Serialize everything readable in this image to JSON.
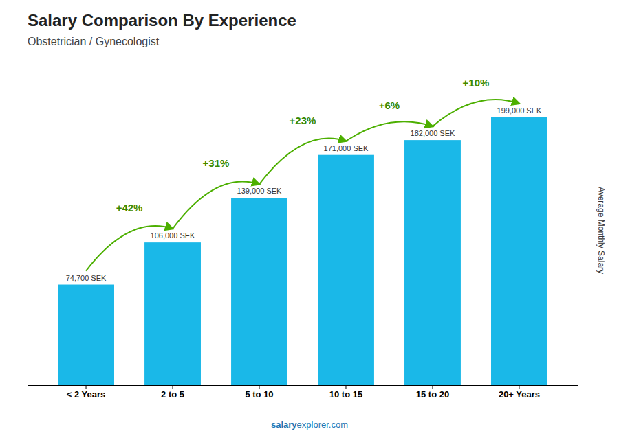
{
  "chart_data": {
    "type": "bar",
    "title": "Salary Comparison By Experience",
    "subtitle": "Obstetrician / Gynecologist",
    "ylabel": "Average Monthly Salary",
    "categories": [
      "< 2 Years",
      "2 to 5",
      "5 to 10",
      "10 to 15",
      "15 to 20",
      "20+ Years"
    ],
    "values": [
      74700,
      106000,
      139000,
      171000,
      182000,
      199000
    ],
    "value_labels": [
      "74,700 SEK",
      "106,000 SEK",
      "139,000 SEK",
      "171,000 SEK",
      "182,000 SEK",
      "199,000 SEK"
    ],
    "annotations": [
      "+42%",
      "+31%",
      "+23%",
      "+6%",
      "+10%"
    ],
    "watermark": [
      "salary",
      "explorer.com"
    ],
    "color": "#1ab8e8",
    "ylim": [
      0,
      230000
    ],
    "data_labels": true,
    "tick_labels": "x"
  }
}
